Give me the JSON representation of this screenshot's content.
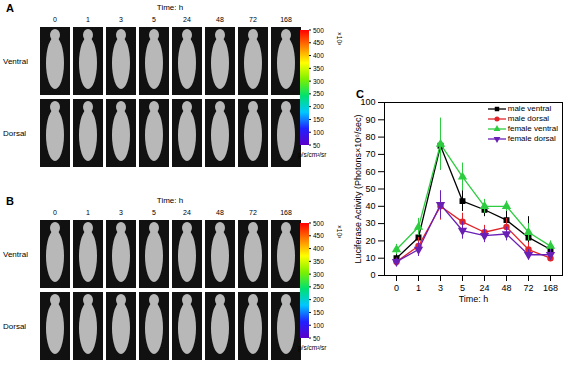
{
  "panels": [
    {
      "label": "A",
      "time_label": "Time: h",
      "times": [
        0,
        1,
        3,
        5,
        24,
        48,
        72,
        168
      ],
      "rows": [
        "Ventral",
        "Dorsal"
      ],
      "colorbar": {
        "lim": [
          50,
          500
        ],
        "ticks": [
          50,
          100,
          150,
          200,
          250,
          300,
          350,
          400,
          450,
          500
        ],
        "scale_label": "×10³",
        "unit": "p/s/cm²/sr"
      }
    },
    {
      "label": "B",
      "time_label": "Time: h",
      "times": [
        0,
        1,
        3,
        5,
        24,
        48,
        72,
        168
      ],
      "rows": [
        "Ventral",
        "Dorsal"
      ],
      "colorbar": {
        "lim": [
          50,
          500
        ],
        "ticks": [
          50,
          100,
          150,
          200,
          250,
          300,
          350,
          400,
          450,
          500
        ],
        "scale_label": "×10³",
        "unit": "p/s/cm²/sr"
      }
    }
  ],
  "chart_data": {
    "type": "line",
    "label": "C",
    "x_label": "Time: h",
    "y_label": "Luciferase Activity (Photons×10⁶/sec)",
    "categories": [
      0,
      1,
      3,
      5,
      24,
      48,
      72,
      168
    ],
    "ylim": [
      0,
      100
    ],
    "yticks": [
      0,
      10,
      20,
      30,
      40,
      50,
      60,
      70,
      80,
      90,
      100
    ],
    "legend": "top-right",
    "series": [
      {
        "name": "male ventral",
        "color": "#000000",
        "marker": "square",
        "values": [
          10,
          22,
          75,
          43,
          38,
          32,
          22,
          15
        ],
        "errors": [
          3,
          5,
          14,
          6,
          4,
          5,
          12,
          3
        ]
      },
      {
        "name": "male dorsal",
        "color": "#e0242a",
        "marker": "circle",
        "values": [
          8,
          17,
          40,
          31,
          25,
          28,
          15,
          10
        ],
        "errors": [
          2,
          5,
          8,
          5,
          4,
          5,
          4,
          2
        ]
      },
      {
        "name": "female ventral",
        "color": "#2ecc40",
        "marker": "triangle",
        "values": [
          15,
          28,
          76,
          57,
          40,
          40,
          25,
          17
        ],
        "errors": [
          3,
          5,
          15,
          8,
          4,
          3,
          5,
          3
        ]
      },
      {
        "name": "female dorsal",
        "color": "#6a1fb5",
        "marker": "triangle-down",
        "values": [
          8,
          15,
          41,
          26,
          23,
          24,
          12,
          12
        ],
        "errors": [
          2,
          4,
          8,
          5,
          4,
          4,
          3,
          3
        ]
      }
    ]
  }
}
